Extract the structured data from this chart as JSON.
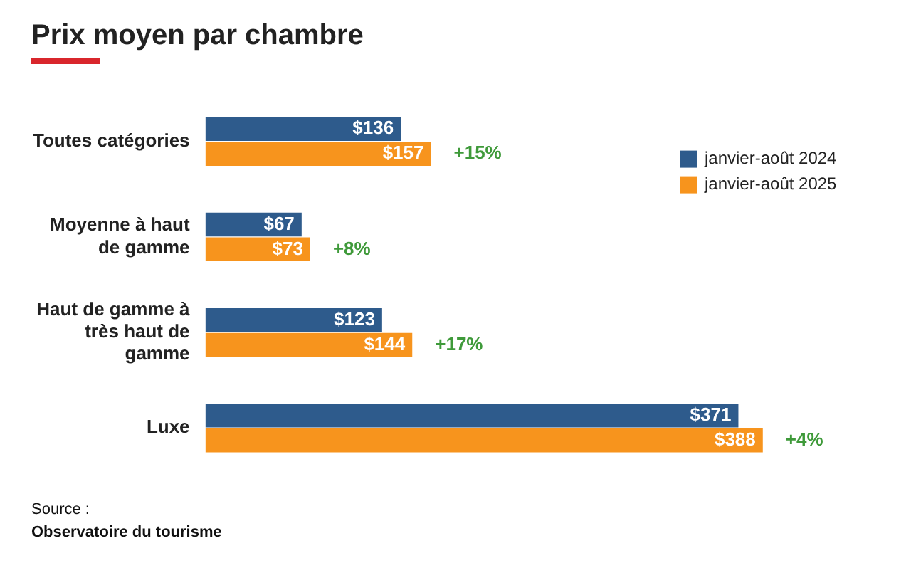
{
  "chart_data": {
    "type": "bar",
    "orientation": "horizontal",
    "title": "Prix moyen par chambre",
    "categories": [
      "Toutes catégories",
      "Moyenne à haut de gamme",
      "Haut de gamme à très haut de gamme",
      "Luxe"
    ],
    "series": [
      {
        "name": "janvier-août 2024",
        "color": "#2e5b8c",
        "values": [
          136,
          67,
          123,
          371
        ],
        "value_labels": [
          "$136",
          "$67",
          "$123",
          "$371"
        ]
      },
      {
        "name": "janvier-août 2025",
        "color": "#f7941d",
        "values": [
          157,
          73,
          144,
          388
        ],
        "value_labels": [
          "$157",
          "$73",
          "$144",
          "$388"
        ]
      }
    ],
    "tick_labels": "y",
    "legend": "top right",
    "annotations": [
      {
        "text": "+15%",
        "x": 157,
        "y": "Toutes catégories"
      },
      {
        "text": "+8%",
        "x": 73,
        "y": "Moyenne à haut de gamme"
      },
      {
        "text": "+17%",
        "x": 144,
        "y": "Haut de gamme à très haut de gamme"
      },
      {
        "text": "+4%",
        "x": 388,
        "y": "Luxe"
      },
      "Source :",
      "Observatoire du tourisme"
    ]
  }
}
